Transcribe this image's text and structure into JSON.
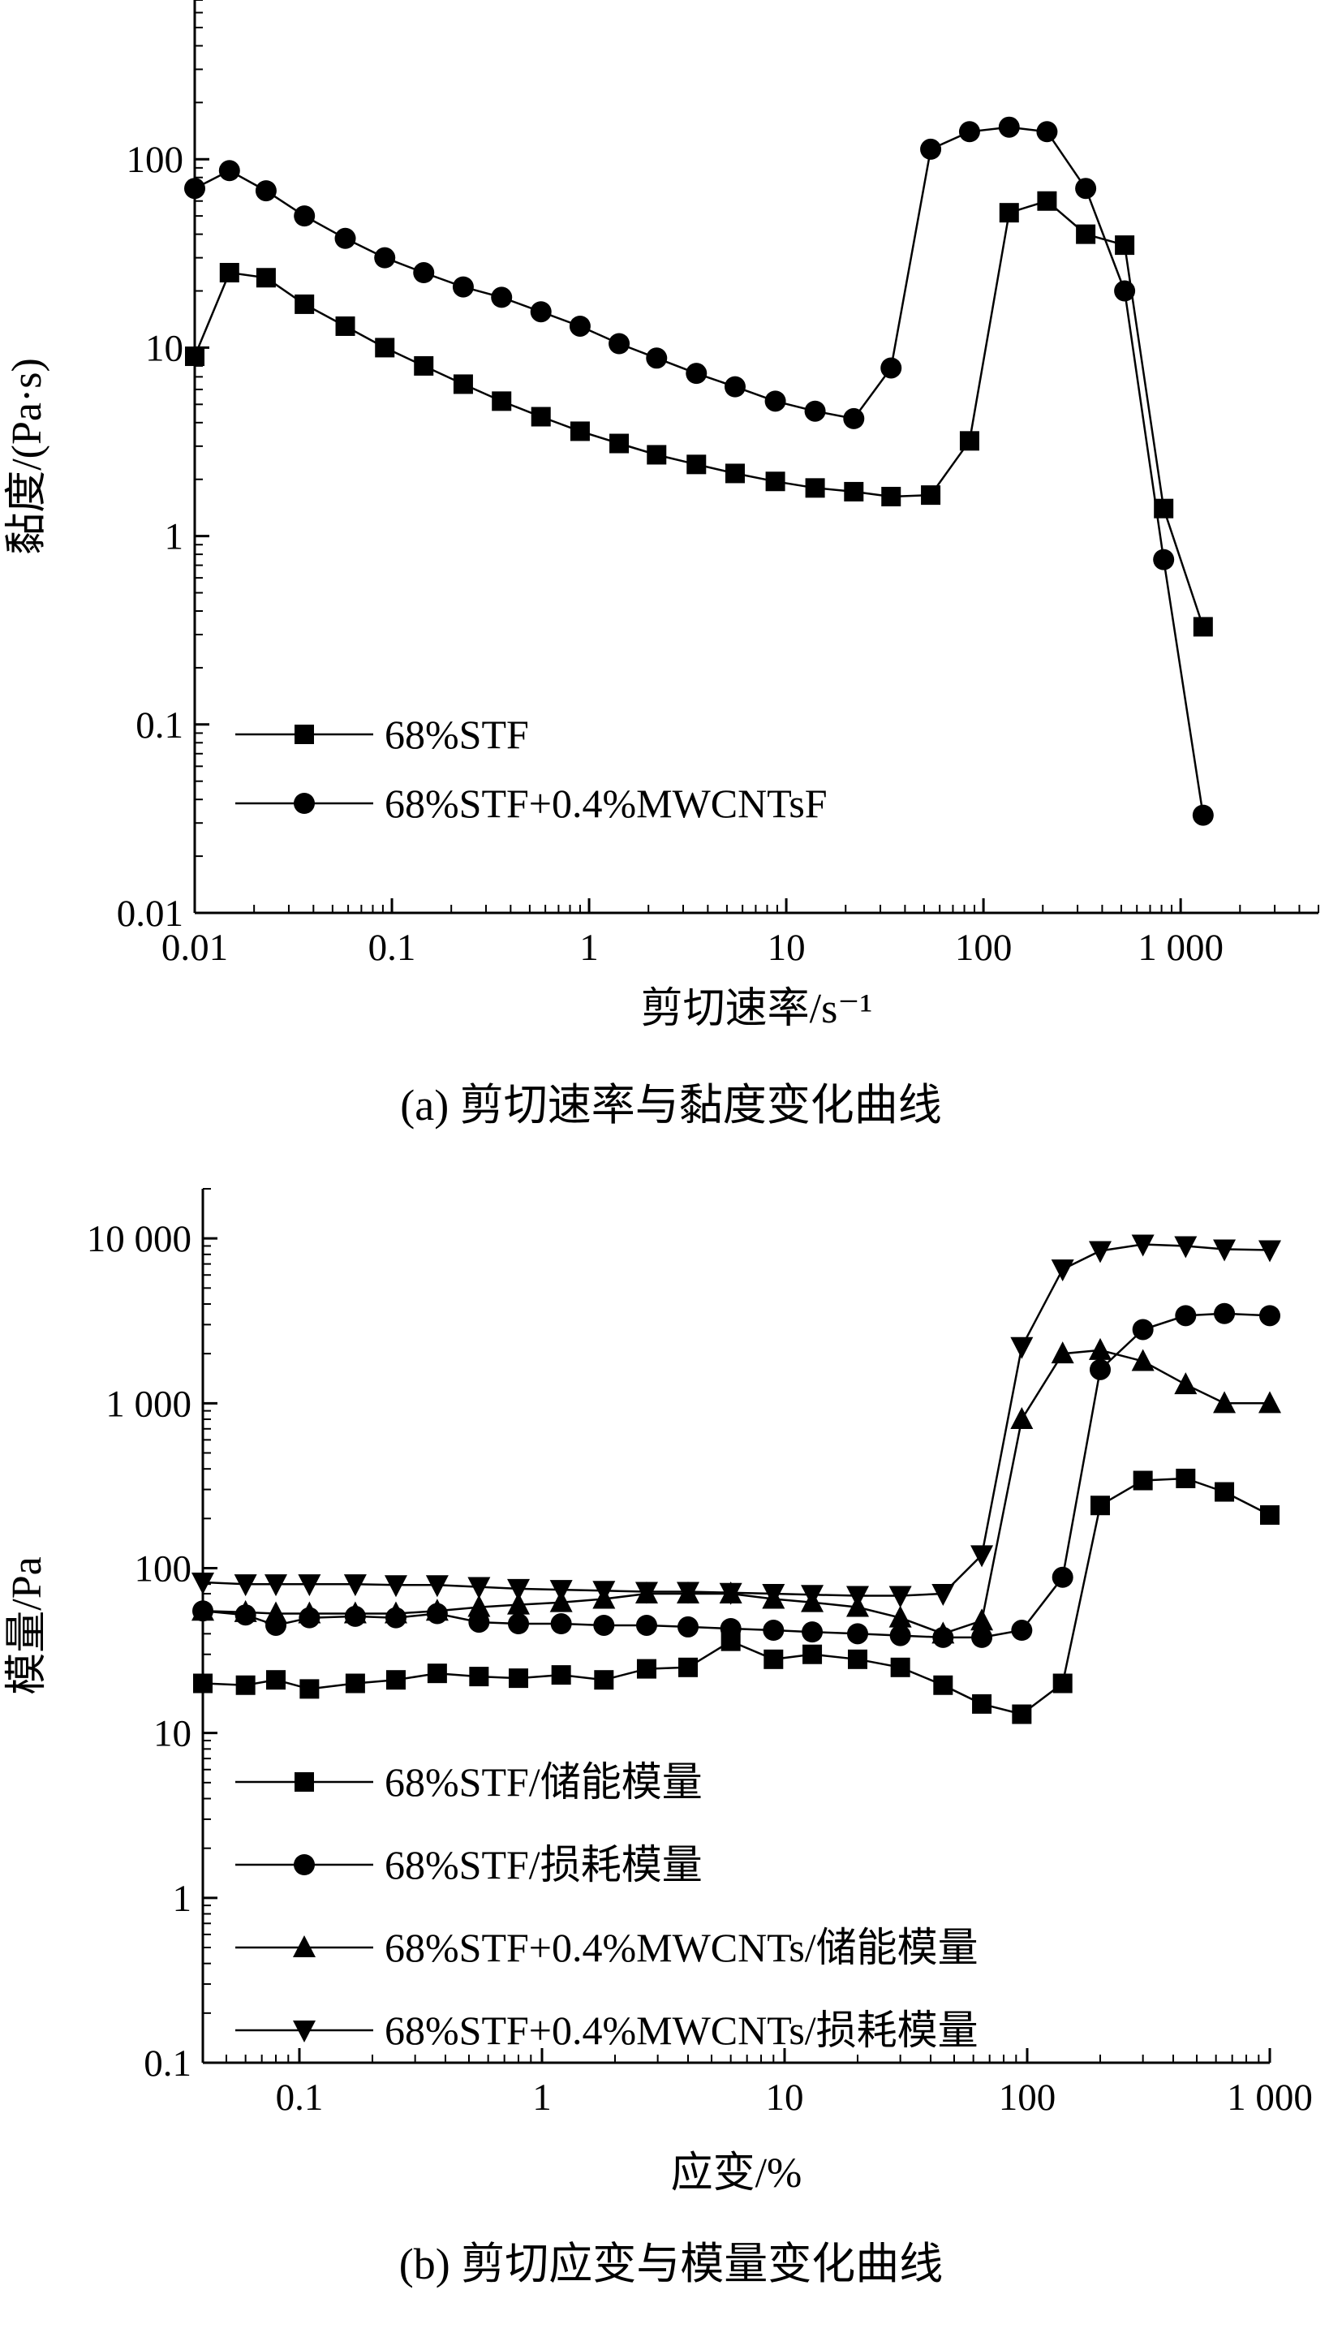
{
  "chart_data": [
    {
      "id": "a",
      "type": "line",
      "caption": "(a) 剪切速率与黏度变化曲线",
      "xlabel": "剪切速率/s⁻¹",
      "ylabel": "黏度/(Pa·s)",
      "xscale": "log",
      "yscale": "log",
      "xlim": [
        0.01,
        5000
      ],
      "ylim": [
        0.01,
        700
      ],
      "xticks": [
        0.01,
        0.1,
        1,
        10,
        100,
        1000
      ],
      "xtick_labels": [
        "0.01",
        "0.1",
        "1",
        "10",
        "100",
        "1 000"
      ],
      "yticks": [
        0.01,
        0.1,
        1,
        10,
        100
      ],
      "ytick_labels": [
        "0.01",
        "0.1",
        "1",
        "10",
        "100"
      ],
      "legend_position": "lower-left",
      "series": [
        {
          "name": "68%STF",
          "marker": "square",
          "x": [
            0.01,
            0.015,
            0.023,
            0.036,
            0.058,
            0.092,
            0.145,
            0.23,
            0.36,
            0.57,
            0.9,
            1.42,
            2.2,
            3.5,
            5.5,
            8.8,
            14,
            22,
            34,
            54,
            85,
            135,
            210,
            330,
            520,
            820,
            1300
          ],
          "y": [
            9,
            25,
            23.5,
            17,
            13,
            10,
            8,
            6.4,
            5.2,
            4.3,
            3.6,
            3.1,
            2.7,
            2.4,
            2.15,
            1.95,
            1.8,
            1.72,
            1.62,
            1.65,
            3.2,
            52,
            60,
            40,
            35,
            1.4,
            0.33
          ]
        },
        {
          "name": "68%STF+0.4%MWCNTsF",
          "marker": "circle",
          "x": [
            0.01,
            0.015,
            0.023,
            0.036,
            0.058,
            0.092,
            0.145,
            0.23,
            0.36,
            0.57,
            0.9,
            1.42,
            2.2,
            3.5,
            5.5,
            8.8,
            14,
            22,
            34,
            54,
            85,
            135,
            210,
            330,
            520,
            820,
            1300
          ],
          "y": [
            70,
            87,
            68,
            50,
            38,
            30,
            25,
            21,
            18.5,
            15.5,
            13,
            10.5,
            8.8,
            7.3,
            6.2,
            5.2,
            4.6,
            4.2,
            7.8,
            113,
            140,
            148,
            140,
            70,
            20,
            0.75,
            0.033
          ]
        }
      ]
    },
    {
      "id": "b",
      "type": "line",
      "caption": "(b) 剪切应变与模量变化曲线",
      "xlabel": "应变/%",
      "ylabel": "模量/Pa",
      "xscale": "log",
      "yscale": "log",
      "xlim": [
        0.04,
        1000
      ],
      "ylim": [
        0.1,
        20000
      ],
      "xticks": [
        0.1,
        1,
        10,
        100,
        1000
      ],
      "xtick_labels": [
        "0.1",
        "1",
        "10",
        "100",
        "1 000"
      ],
      "yticks": [
        0.1,
        1,
        10,
        100,
        1000,
        10000
      ],
      "ytick_labels": [
        "0.1",
        "1",
        "10",
        "100",
        "1 000",
        "10 000"
      ],
      "legend_position": "lower-left",
      "series": [
        {
          "name": "68%STF/储能模量",
          "marker": "square",
          "x": [
            0.04,
            0.06,
            0.08,
            0.11,
            0.17,
            0.25,
            0.37,
            0.55,
            0.8,
            1.2,
            1.8,
            2.7,
            4,
            6,
            9,
            13,
            20,
            30,
            45,
            65,
            95,
            140,
            200,
            300,
            450,
            650,
            1000
          ],
          "y": [
            20,
            19.5,
            21,
            18.5,
            20,
            21,
            23,
            22,
            21.5,
            22.5,
            21,
            24.5,
            25,
            36,
            28,
            30,
            28,
            25,
            19.5,
            15,
            13,
            20,
            240,
            340,
            350,
            290,
            210
          ]
        },
        {
          "name": "68%STF/损耗模量",
          "marker": "circle",
          "x": [
            0.04,
            0.06,
            0.08,
            0.11,
            0.17,
            0.25,
            0.37,
            0.55,
            0.8,
            1.2,
            1.8,
            2.7,
            4,
            6,
            9,
            13,
            20,
            30,
            45,
            65,
            95,
            140,
            200,
            300,
            450,
            650,
            1000
          ],
          "y": [
            55,
            52,
            45,
            50,
            51,
            50,
            53,
            47,
            46,
            46,
            45,
            45,
            44,
            43,
            42,
            41,
            40,
            39,
            38,
            38,
            42,
            88,
            1600,
            2800,
            3400,
            3500,
            3400
          ]
        },
        {
          "name": "68%STF+0.4%MWCNTs/储能模量",
          "marker": "triangle-up",
          "x": [
            0.04,
            0.06,
            0.08,
            0.11,
            0.17,
            0.25,
            0.37,
            0.55,
            0.8,
            1.2,
            1.8,
            2.7,
            4,
            6,
            9,
            13,
            20,
            30,
            45,
            65,
            95,
            140,
            200,
            300,
            450,
            650,
            1000
          ],
          "y": [
            55,
            54,
            53,
            53,
            53,
            53,
            55,
            58,
            60,
            62,
            65,
            70,
            70,
            70,
            65,
            62,
            58,
            50,
            40,
            48,
            800,
            2000,
            2100,
            1800,
            1300,
            1000,
            1000
          ]
        },
        {
          "name": "68%STF+0.4%MWCNTs/损耗模量",
          "marker": "triangle-down",
          "x": [
            0.04,
            0.06,
            0.08,
            0.11,
            0.17,
            0.25,
            0.37,
            0.55,
            0.8,
            1.2,
            1.8,
            2.7,
            4,
            6,
            9,
            13,
            20,
            30,
            45,
            65,
            95,
            140,
            200,
            300,
            450,
            650,
            1000
          ],
          "y": [
            82,
            80,
            80,
            80,
            80,
            79,
            79,
            77,
            75,
            74,
            73,
            72,
            72,
            71,
            70,
            69,
            68,
            68,
            70,
            120,
            2200,
            6500,
            8400,
            9200,
            9000,
            8600,
            8500
          ]
        }
      ]
    }
  ]
}
